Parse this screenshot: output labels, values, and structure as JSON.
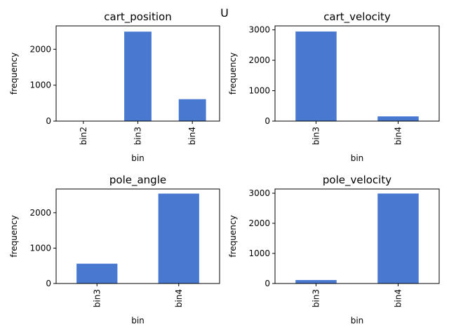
{
  "figure": {
    "suptitle": "U",
    "bar_color": "#4878cf"
  },
  "chart_data": [
    {
      "type": "bar",
      "title": "cart_position",
      "xlabel": "bin",
      "ylabel": "frequency",
      "categories": [
        "bin2",
        "bin3",
        "bin4"
      ],
      "values": [
        3,
        2490,
        610
      ],
      "ylim": [
        0,
        2650
      ],
      "yticks": [
        0,
        1000,
        2000
      ]
    },
    {
      "type": "bar",
      "title": "cart_velocity",
      "xlabel": "bin",
      "ylabel": "frequency",
      "categories": [
        "bin3",
        "bin4"
      ],
      "values": [
        2945,
        155
      ],
      "ylim": [
        0,
        3130
      ],
      "yticks": [
        0,
        1000,
        2000,
        3000
      ]
    },
    {
      "type": "bar",
      "title": "pole_angle",
      "xlabel": "bin",
      "ylabel": "frequency",
      "categories": [
        "bin3",
        "bin4"
      ],
      "values": [
        560,
        2540
      ],
      "ylim": [
        0,
        2670
      ],
      "yticks": [
        0,
        1000,
        2000
      ]
    },
    {
      "type": "bar",
      "title": "pole_velocity",
      "xlabel": "bin",
      "ylabel": "frequency",
      "categories": [
        "bin3",
        "bin4"
      ],
      "values": [
        115,
        2990
      ],
      "ylim": [
        0,
        3140
      ],
      "yticks": [
        0,
        1000,
        2000,
        3000
      ]
    }
  ]
}
